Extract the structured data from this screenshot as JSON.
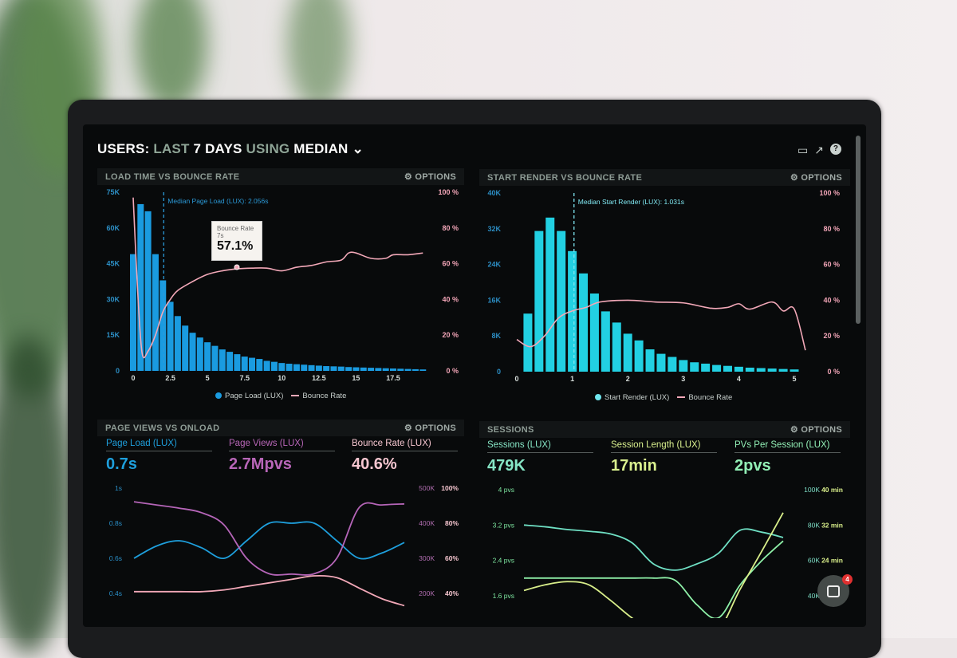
{
  "header": {
    "users": "USERS:",
    "last": "LAST",
    "days": "7 DAYS",
    "using": "USING",
    "median": "MEDIAN",
    "chevron": "⌄"
  },
  "toolbar": {
    "icons": [
      "monitor-icon",
      "share-icon",
      "help-icon"
    ],
    "monitor": "▭",
    "share": "↗",
    "help": "?"
  },
  "options_label": "⚙ OPTIONS",
  "panels": {
    "load": {
      "title": "LOAD TIME VS BOUNCE RATE",
      "legend_bars": "Page Load (LUX)",
      "legend_line": "Bounce Rate",
      "median": "Median Page Load (LUX): 2.056s",
      "tooltip": {
        "label": "Bounce Rate",
        "x": "7s",
        "value": "57.1%"
      }
    },
    "render": {
      "title": "START RENDER VS BOUNCE RATE",
      "legend_bars": "Start Render (LUX)",
      "legend_line": "Bounce Rate",
      "median": "Median Start Render (LUX): 1.031s"
    },
    "views": {
      "title": "PAGE VIEWS VS ONLOAD",
      "stats": [
        {
          "label": "Page Load (LUX)",
          "value": "0.7s",
          "color": "#1e9fdc"
        },
        {
          "label": "Page Views (LUX)",
          "value": "2.7Mpvs",
          "color": "#b866b8"
        },
        {
          "label": "Bounce Rate (LUX)",
          "value": "40.6%",
          "color": "#f6c6d0"
        }
      ]
    },
    "sessions": {
      "title": "SESSIONS",
      "stats": [
        {
          "label": "Sessions (LUX)",
          "value": "479K",
          "color": "#86e6c6"
        },
        {
          "label": "Session Length (LUX)",
          "value": "17min",
          "color": "#d9f08e"
        },
        {
          "label": "PVs Per Session (LUX)",
          "value": "2pvs",
          "color": "#92f0b6"
        }
      ]
    }
  },
  "chat": {
    "badge": "4"
  },
  "colors": {
    "blue": "#1a9be0",
    "cyan": "#22d0e2",
    "pink": "#f2a8b8",
    "purple": "#b565b8",
    "teal": "#6fe0c4",
    "green": "#8ef0a8",
    "yellow": "#d8ee8a"
  },
  "chart_data": [
    {
      "type": "bar+line",
      "name": "load",
      "x_unit": "s",
      "yleft": {
        "ticks": [
          0,
          15,
          30,
          45,
          60,
          75
        ],
        "labels": [
          "0",
          "15K",
          "30K",
          "45K",
          "60K",
          "75K"
        ],
        "range": [
          0,
          75
        ]
      },
      "yright": {
        "ticks": [
          0,
          20,
          40,
          60,
          80,
          100
        ],
        "labels": [
          "0 %",
          "20 %",
          "40 %",
          "60 %",
          "80 %",
          "100 %"
        ],
        "range": [
          0,
          100
        ]
      },
      "xticks": [
        0,
        2.5,
        5,
        7.5,
        10,
        12.5,
        15,
        17.5
      ],
      "xlabels": [
        "0",
        "2.5",
        "5",
        "7.5",
        "10",
        "12.5",
        "15",
        "17.5"
      ],
      "median": 2.056,
      "bars": {
        "name": "Page Load (LUX)",
        "x": [
          0,
          0.5,
          1,
          1.5,
          2,
          2.5,
          3,
          3.5,
          4,
          4.5,
          5,
          5.5,
          6,
          6.5,
          7,
          7.5,
          8,
          8.5,
          9,
          9.5,
          10,
          10.5,
          11,
          11.5,
          12,
          12.5,
          13,
          13.5,
          14,
          14.5,
          15,
          15.5,
          16,
          16.5,
          17,
          17.5,
          18,
          18.5,
          19,
          19.5
        ],
        "values": [
          49,
          70,
          67,
          49,
          38,
          29,
          23,
          19,
          16,
          14,
          12,
          10.5,
          9,
          8,
          7,
          6,
          5.5,
          5,
          4.2,
          3.8,
          3.3,
          3,
          2.8,
          2.6,
          2.4,
          2.2,
          2,
          1.9,
          1.8,
          1.6,
          1.5,
          1.4,
          1.3,
          1.2,
          1.1,
          1,
          0.9,
          0.8,
          0.7,
          0.6
        ]
      },
      "line": {
        "name": "Bounce Rate",
        "x": [
          0,
          0.3,
          0.6,
          1,
          1.5,
          2,
          2.5,
          3,
          4,
          5,
          6,
          7,
          8,
          9,
          10,
          11,
          12,
          13,
          14,
          14.5,
          15,
          16,
          17,
          17.5,
          18.5,
          19.5
        ],
        "values": [
          97,
          45,
          10,
          11,
          20,
          33,
          40,
          45,
          50,
          54,
          56,
          57.1,
          57.5,
          57.5,
          56,
          58,
          59,
          61,
          62,
          66,
          66,
          63,
          63,
          65,
          65,
          66
        ]
      }
    },
    {
      "type": "bar+line",
      "name": "render",
      "x_unit": "s",
      "yleft": {
        "ticks": [
          0,
          8,
          16,
          24,
          32,
          40
        ],
        "labels": [
          "0",
          "8K",
          "16K",
          "24K",
          "32K",
          "40K"
        ],
        "range": [
          0,
          40
        ]
      },
      "yright": {
        "ticks": [
          0,
          20,
          40,
          60,
          80,
          100
        ],
        "labels": [
          "0 %",
          "20 %",
          "40 %",
          "60 %",
          "80 %",
          "100 %"
        ],
        "range": [
          0,
          100
        ]
      },
      "xticks": [
        0,
        1,
        2,
        3,
        4,
        5
      ],
      "xlabels": [
        "0",
        "1",
        "2",
        "3",
        "4",
        "5"
      ],
      "median": 1.031,
      "bars": {
        "name": "Start Render (LUX)",
        "x": [
          0.2,
          0.4,
          0.6,
          0.8,
          1,
          1.2,
          1.4,
          1.6,
          1.8,
          2,
          2.2,
          2.4,
          2.6,
          2.8,
          3,
          3.2,
          3.4,
          3.6,
          3.8,
          4,
          4.2,
          4.4,
          4.6,
          4.8,
          5
        ],
        "values": [
          13,
          31.5,
          34.5,
          31.5,
          27,
          22,
          17.5,
          13.5,
          11,
          8.5,
          7,
          5,
          4,
          3.3,
          2.6,
          2.1,
          1.8,
          1.5,
          1.3,
          1.1,
          0.9,
          0.8,
          0.7,
          0.6,
          0.5
        ]
      },
      "line": {
        "name": "Bounce Rate",
        "x": [
          0,
          0.25,
          0.5,
          0.75,
          1,
          1.25,
          1.5,
          2,
          2.5,
          3,
          3.5,
          3.8,
          4,
          4.2,
          4.6,
          4.8,
          5,
          5.2
        ],
        "values": [
          18,
          14,
          20,
          30,
          34,
          36,
          39,
          40,
          39,
          38.5,
          35.5,
          36,
          38,
          35,
          39,
          34,
          35,
          12
        ]
      }
    },
    {
      "type": "line",
      "name": "views",
      "yleft": {
        "labels": [
          "1s",
          "0.8s",
          "0.6s",
          "0.4s"
        ],
        "range": [
          0.4,
          1
        ]
      },
      "yright": {
        "labels": [
          "500K",
          "400K",
          "300K",
          "200K"
        ],
        "range": [
          200,
          500
        ]
      },
      "yright2": {
        "labels": [
          "100%",
          "80%",
          "60%",
          "40%"
        ],
        "range": [
          40,
          100
        ]
      },
      "series": [
        {
          "axis": "left",
          "color": "#1e9fdc",
          "values": [
            0.6,
            0.67,
            0.7,
            0.66,
            0.6,
            0.7,
            0.8,
            0.8,
            0.8,
            0.7,
            0.6,
            0.63,
            0.69
          ]
        },
        {
          "axis": "right",
          "color": "#b565b8",
          "values": [
            461,
            452,
            443,
            430,
            395,
            300,
            256,
            255,
            256,
            300,
            445,
            452,
            455
          ]
        },
        {
          "axis": "right2",
          "color": "#f2a8b8",
          "values": [
            41,
            41,
            41,
            41,
            42,
            44,
            46,
            48,
            50,
            49,
            43,
            37,
            33
          ]
        }
      ]
    },
    {
      "type": "line",
      "name": "sessions",
      "yleft": {
        "labels": [
          "4 pvs",
          "3.2 pvs",
          "2.4 pvs",
          "1.6 pvs"
        ],
        "range": [
          1.6,
          4
        ]
      },
      "yright": {
        "labels": [
          "100K",
          "80K",
          "60K",
          "40K"
        ],
        "range": [
          40,
          100
        ]
      },
      "yright2": {
        "labels": [
          "40 min",
          "32 min",
          "24 min"
        ],
        "range": [
          24,
          40
        ]
      },
      "series": [
        {
          "axis": "right",
          "color": "#6fe0c4",
          "values": [
            80,
            79,
            77.5,
            76.5,
            75,
            70,
            58,
            54.5,
            58,
            64,
            77,
            76,
            73
          ]
        },
        {
          "axis": "left",
          "color": "#8ef0a8",
          "values": [
            2,
            2,
            2,
            2,
            2,
            2,
            2,
            1.95,
            1.4,
            1.1,
            1.84,
            2.39,
            2.84
          ]
        },
        {
          "axis": "right2",
          "color": "#d8ee8a",
          "values": [
            17.2,
            18.5,
            19.2,
            18.5,
            15,
            11,
            8,
            6,
            6,
            8,
            17.4,
            26,
            34.8
          ]
        }
      ]
    }
  ]
}
